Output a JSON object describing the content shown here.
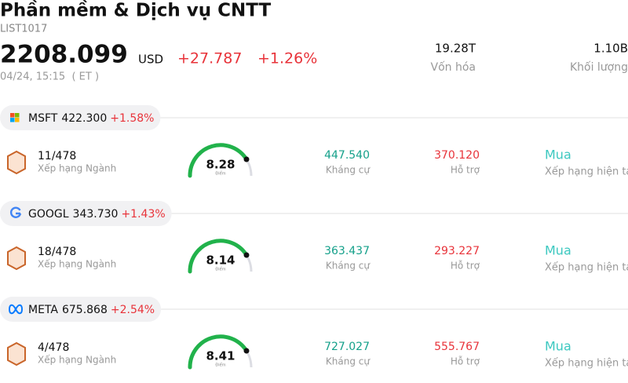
{
  "header": {
    "title": "Phần mềm & Dịch vụ CNTT",
    "code": "LIST1017",
    "price": "2208.099",
    "currency": "USD",
    "change": "+27.787",
    "change_pct": "+1.26%",
    "time": "04/24, 15:15  ( ET )",
    "stats": [
      {
        "value": "19.28T",
        "label": "Vốn hóa"
      },
      {
        "value": "1.10B",
        "label": "Khối lượng"
      }
    ]
  },
  "stocks": [
    {
      "ticker": "MSFT",
      "price": "422.300",
      "change": "+1.58%",
      "rank": "11/478",
      "rank_label": "Xếp hạng Ngành",
      "score": "8.28",
      "score_label": "Điểm",
      "resistance": "447.540",
      "resistance_label": "Kháng cự",
      "support": "370.120",
      "support_label": "Hỗ trợ",
      "rating": "Mua",
      "rating_label": "Xếp hạng hiện tại"
    },
    {
      "ticker": "GOOGL",
      "price": "343.730",
      "change": "+1.43%",
      "rank": "18/478",
      "rank_label": "Xếp hạng Ngành",
      "score": "8.14",
      "score_label": "Điểm",
      "resistance": "363.437",
      "resistance_label": "Kháng cự",
      "support": "293.227",
      "support_label": "Hỗ trợ",
      "rating": "Mua",
      "rating_label": "Xếp hạng hiện tại"
    },
    {
      "ticker": "META",
      "price": "675.868",
      "change": "+2.54%",
      "rank": "4/478",
      "rank_label": "Xếp hạng Ngành",
      "score": "8.41",
      "score_label": "Điểm",
      "resistance": "727.027",
      "resistance_label": "Kháng cự",
      "support": "555.767",
      "support_label": "Hỗ trợ",
      "rating": "Mua",
      "rating_label": "Xếp hạng hiện tại"
    }
  ]
}
